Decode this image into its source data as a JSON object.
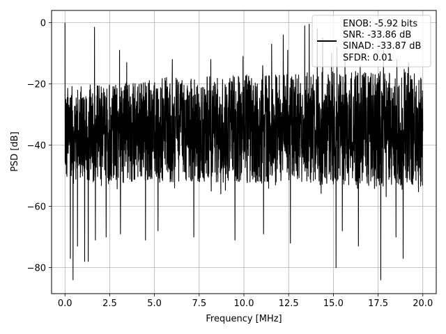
{
  "chart_data": {
    "type": "line",
    "title": "",
    "xlabel": "Frequency [MHz]",
    "ylabel": "PSD [dB]",
    "xlim": [
      -0.75,
      20.75
    ],
    "ylim": [
      -88.5,
      4
    ],
    "xticks": [
      0.0,
      2.5,
      5.0,
      7.5,
      10.0,
      12.5,
      15.0,
      17.5,
      20.0
    ],
    "xtick_labels": [
      "0.0",
      "2.5",
      "5.0",
      "7.5",
      "10.0",
      "12.5",
      "15.0",
      "17.5",
      "20.0"
    ],
    "yticks": [
      0,
      -20,
      -40,
      -60,
      -80
    ],
    "ytick_labels": [
      "0",
      "−20",
      "−40",
      "−60",
      "−80"
    ],
    "grid": true,
    "legend_position": "top-right",
    "line_color": "#000000",
    "series": [
      {
        "legend_lines": [
          "ENOB: -5.92 bits",
          "SNR: -33.86 dB",
          "SINAD: -33.87 dB",
          "SFDR: 0.01"
        ],
        "description": "dense noise floor spanning roughly -20 dB to -60 dB across 0-20 MHz with spurs",
        "floor_top": [
          [
            0,
            -21
          ],
          [
            5,
            -18
          ],
          [
            10,
            -17
          ],
          [
            15,
            -16
          ],
          [
            20,
            -15
          ]
        ],
        "floor_bottom": [
          [
            0,
            -55
          ],
          [
            20,
            -58
          ]
        ],
        "peaks": [
          [
            0.0,
            0.0
          ],
          [
            1.65,
            -1.5
          ],
          [
            3.05,
            -9
          ],
          [
            3.45,
            -13
          ],
          [
            6.0,
            -12
          ],
          [
            8.15,
            -12
          ],
          [
            9.95,
            -11
          ],
          [
            11.05,
            -14
          ],
          [
            11.55,
            -7
          ],
          [
            12.2,
            -4
          ],
          [
            12.45,
            -9
          ],
          [
            13.4,
            -1
          ],
          [
            13.65,
            -0.5
          ],
          [
            14.1,
            -2
          ],
          [
            14.4,
            -5
          ],
          [
            14.9,
            -10
          ],
          [
            15.2,
            -8
          ],
          [
            15.65,
            -10
          ],
          [
            16.5,
            -14
          ],
          [
            17.8,
            -9
          ],
          [
            18.55,
            -12
          ],
          [
            19.2,
            -13
          ]
        ],
        "dips": [
          [
            0.3,
            -77
          ],
          [
            0.45,
            -84
          ],
          [
            0.7,
            -73
          ],
          [
            1.1,
            -78
          ],
          [
            1.3,
            -78
          ],
          [
            1.7,
            -71
          ],
          [
            2.3,
            -70
          ],
          [
            3.1,
            -69
          ],
          [
            4.5,
            -71
          ],
          [
            5.2,
            -68
          ],
          [
            7.2,
            -70
          ],
          [
            9.5,
            -71
          ],
          [
            11.1,
            -69
          ],
          [
            12.6,
            -72
          ],
          [
            15.15,
            -80
          ],
          [
            15.5,
            -68
          ],
          [
            16.4,
            -73
          ],
          [
            17.65,
            -84
          ],
          [
            18.5,
            -70
          ],
          [
            18.9,
            -77
          ]
        ]
      }
    ]
  }
}
